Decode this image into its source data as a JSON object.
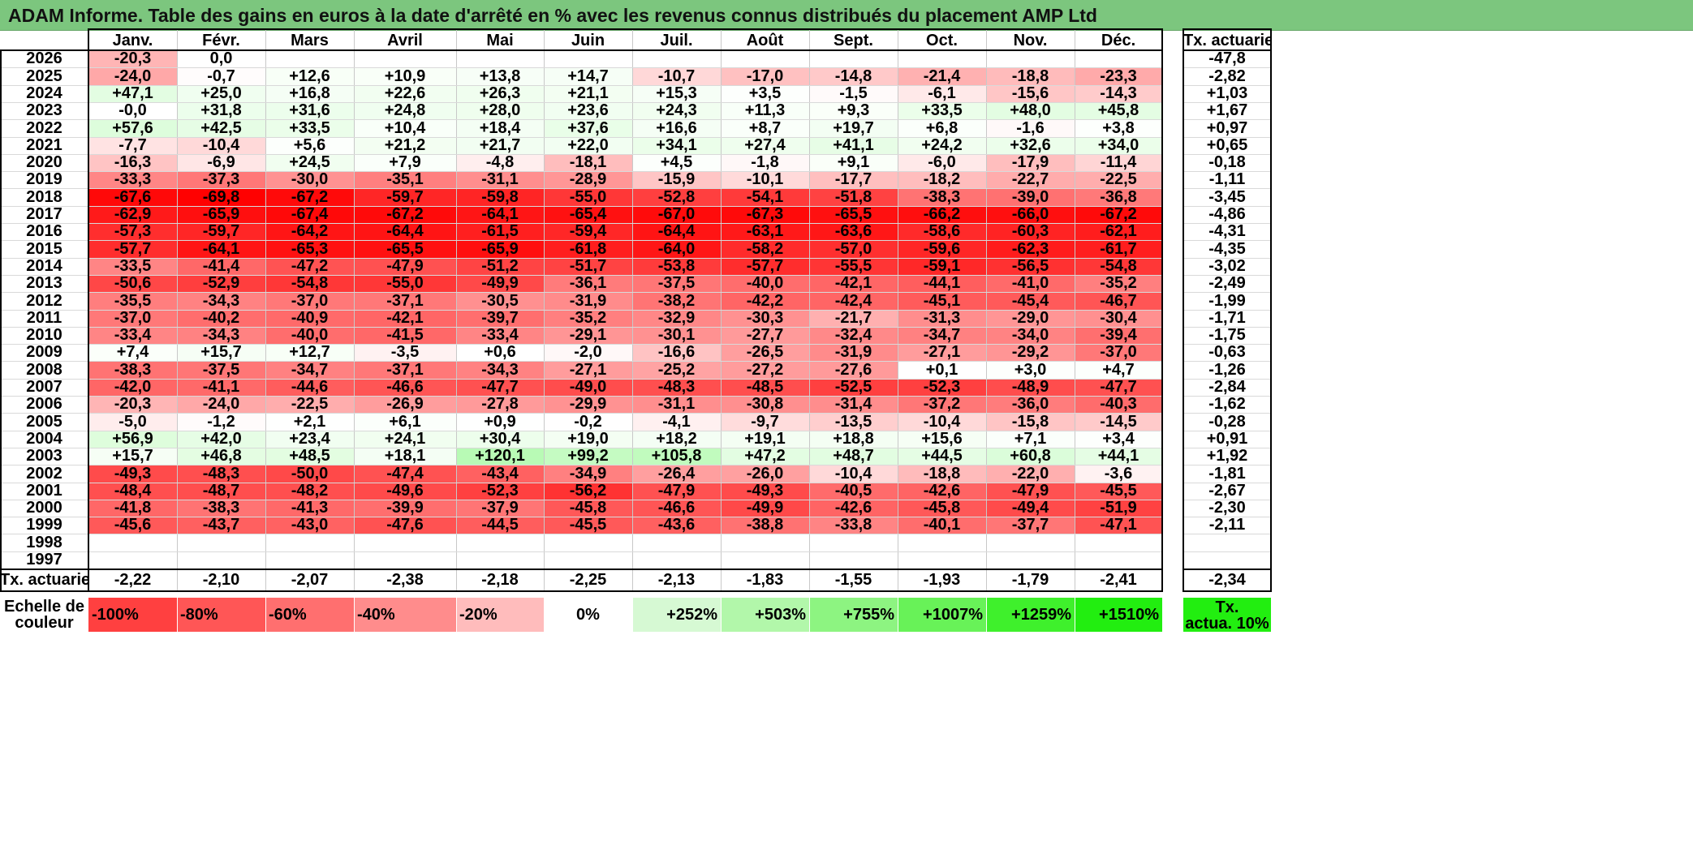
{
  "title": "ADAM Informe. Table des gains en euros à la date d'arrêté en % avec les revenus connus distribués du placement AMP Ltd",
  "months": [
    "Janv.",
    "Févr.",
    "Mars",
    "Avril",
    "Mai",
    "Juin",
    "Juil.",
    "Août",
    "Sept.",
    "Oct.",
    "Nov.",
    "Déc."
  ],
  "rate_header": "Tx. actuariel",
  "rows": [
    {
      "year": "2026",
      "values": [
        "-20,3",
        "0,0",
        "",
        "",
        "",
        "",
        "",
        "",
        "",
        "",
        "",
        ""
      ],
      "rate": "-47,8"
    },
    {
      "year": "2025",
      "values": [
        "-24,0",
        "-0,7",
        "+12,6",
        "+10,9",
        "+13,8",
        "+14,7",
        "-10,7",
        "-17,0",
        "-14,8",
        "-21,4",
        "-18,8",
        "-23,3"
      ],
      "rate": "-2,82"
    },
    {
      "year": "2024",
      "values": [
        "+47,1",
        "+25,0",
        "+16,8",
        "+22,6",
        "+26,3",
        "+21,1",
        "+15,3",
        "+3,5",
        "-1,5",
        "-6,1",
        "-15,6",
        "-14,3"
      ],
      "rate": "+1,03"
    },
    {
      "year": "2023",
      "values": [
        "-0,0",
        "+31,8",
        "+31,6",
        "+24,8",
        "+28,0",
        "+23,6",
        "+24,3",
        "+11,3",
        "+9,3",
        "+33,5",
        "+48,0",
        "+45,8"
      ],
      "rate": "+1,67"
    },
    {
      "year": "2022",
      "values": [
        "+57,6",
        "+42,5",
        "+33,5",
        "+10,4",
        "+18,4",
        "+37,6",
        "+16,6",
        "+8,7",
        "+19,7",
        "+6,8",
        "-1,6",
        "+3,8"
      ],
      "rate": "+0,97"
    },
    {
      "year": "2021",
      "values": [
        "-7,7",
        "-10,4",
        "+5,6",
        "+21,2",
        "+21,7",
        "+22,0",
        "+34,1",
        "+27,4",
        "+41,1",
        "+24,2",
        "+32,6",
        "+34,0"
      ],
      "rate": "+0,65"
    },
    {
      "year": "2020",
      "values": [
        "-16,3",
        "-6,9",
        "+24,5",
        "+7,9",
        "-4,8",
        "-18,1",
        "+4,5",
        "-1,8",
        "+9,1",
        "-6,0",
        "-17,9",
        "-11,4"
      ],
      "rate": "-0,18"
    },
    {
      "year": "2019",
      "values": [
        "-33,3",
        "-37,3",
        "-30,0",
        "-35,1",
        "-31,1",
        "-28,9",
        "-15,9",
        "-10,1",
        "-17,7",
        "-18,2",
        "-22,7",
        "-22,5"
      ],
      "rate": "-1,11"
    },
    {
      "year": "2018",
      "values": [
        "-67,6",
        "-69,8",
        "-67,2",
        "-59,7",
        "-59,8",
        "-55,0",
        "-52,8",
        "-54,1",
        "-51,8",
        "-38,3",
        "-39,0",
        "-36,8"
      ],
      "rate": "-3,45"
    },
    {
      "year": "2017",
      "values": [
        "-62,9",
        "-65,9",
        "-67,4",
        "-67,2",
        "-64,1",
        "-65,4",
        "-67,0",
        "-67,3",
        "-65,5",
        "-66,2",
        "-66,0",
        "-67,2"
      ],
      "rate": "-4,86"
    },
    {
      "year": "2016",
      "values": [
        "-57,3",
        "-59,7",
        "-64,2",
        "-64,4",
        "-61,5",
        "-59,4",
        "-64,4",
        "-63,1",
        "-63,6",
        "-58,6",
        "-60,3",
        "-62,1"
      ],
      "rate": "-4,31"
    },
    {
      "year": "2015",
      "values": [
        "-57,7",
        "-64,1",
        "-65,3",
        "-65,5",
        "-65,9",
        "-61,8",
        "-64,0",
        "-58,2",
        "-57,0",
        "-59,6",
        "-62,3",
        "-61,7"
      ],
      "rate": "-4,35"
    },
    {
      "year": "2014",
      "values": [
        "-33,5",
        "-41,4",
        "-47,2",
        "-47,9",
        "-51,2",
        "-51,7",
        "-53,8",
        "-57,7",
        "-55,5",
        "-59,1",
        "-56,5",
        "-54,8"
      ],
      "rate": "-3,02"
    },
    {
      "year": "2013",
      "values": [
        "-50,6",
        "-52,9",
        "-54,8",
        "-55,0",
        "-49,9",
        "-36,1",
        "-37,5",
        "-40,0",
        "-42,1",
        "-44,1",
        "-41,0",
        "-35,2"
      ],
      "rate": "-2,49"
    },
    {
      "year": "2012",
      "values": [
        "-35,5",
        "-34,3",
        "-37,0",
        "-37,1",
        "-30,5",
        "-31,9",
        "-38,2",
        "-42,2",
        "-42,4",
        "-45,1",
        "-45,4",
        "-46,7"
      ],
      "rate": "-1,99"
    },
    {
      "year": "2011",
      "values": [
        "-37,0",
        "-40,2",
        "-40,9",
        "-42,1",
        "-39,7",
        "-35,2",
        "-32,9",
        "-30,3",
        "-21,7",
        "-31,3",
        "-29,0",
        "-30,4"
      ],
      "rate": "-1,71"
    },
    {
      "year": "2010",
      "values": [
        "-33,4",
        "-34,3",
        "-40,0",
        "-41,5",
        "-33,4",
        "-29,1",
        "-30,1",
        "-27,7",
        "-32,4",
        "-34,7",
        "-34,0",
        "-39,4"
      ],
      "rate": "-1,75"
    },
    {
      "year": "2009",
      "values": [
        "+7,4",
        "+15,7",
        "+12,7",
        "-3,5",
        "+0,6",
        "-2,0",
        "-16,6",
        "-26,5",
        "-31,9",
        "-27,1",
        "-29,2",
        "-37,0"
      ],
      "rate": "-0,63"
    },
    {
      "year": "2008",
      "values": [
        "-38,3",
        "-37,5",
        "-34,7",
        "-37,1",
        "-34,3",
        "-27,1",
        "-25,2",
        "-27,2",
        "-27,6",
        "+0,1",
        "+3,0",
        "+4,7"
      ],
      "rate": "-1,26"
    },
    {
      "year": "2007",
      "values": [
        "-42,0",
        "-41,1",
        "-44,6",
        "-46,6",
        "-47,7",
        "-49,0",
        "-48,3",
        "-48,5",
        "-52,5",
        "-52,3",
        "-48,9",
        "-47,7"
      ],
      "rate": "-2,84"
    },
    {
      "year": "2006",
      "values": [
        "-20,3",
        "-24,0",
        "-22,5",
        "-26,9",
        "-27,8",
        "-29,9",
        "-31,1",
        "-30,8",
        "-31,4",
        "-37,2",
        "-36,0",
        "-40,3"
      ],
      "rate": "-1,62"
    },
    {
      "year": "2005",
      "values": [
        "-5,0",
        "-1,2",
        "+2,1",
        "+6,1",
        "+0,9",
        "-0,2",
        "-4,1",
        "-9,7",
        "-13,5",
        "-10,4",
        "-15,8",
        "-14,5"
      ],
      "rate": "-0,28"
    },
    {
      "year": "2004",
      "values": [
        "+56,9",
        "+42,0",
        "+23,4",
        "+24,1",
        "+30,4",
        "+19,0",
        "+18,2",
        "+19,1",
        "+18,8",
        "+15,6",
        "+7,1",
        "+3,4"
      ],
      "rate": "+0,91"
    },
    {
      "year": "2003",
      "values": [
        "+15,7",
        "+46,8",
        "+48,5",
        "+18,1",
        "+120,1",
        "+99,2",
        "+105,8",
        "+47,2",
        "+48,7",
        "+44,5",
        "+60,8",
        "+44,1"
      ],
      "rate": "+1,92"
    },
    {
      "year": "2002",
      "values": [
        "-49,3",
        "-48,3",
        "-50,0",
        "-47,4",
        "-43,4",
        "-34,9",
        "-26,4",
        "-26,0",
        "-10,4",
        "-18,8",
        "-22,0",
        "-3,6"
      ],
      "rate": "-1,81"
    },
    {
      "year": "2001",
      "values": [
        "-48,4",
        "-48,7",
        "-48,2",
        "-49,6",
        "-52,3",
        "-56,2",
        "-47,9",
        "-49,3",
        "-40,5",
        "-42,6",
        "-47,9",
        "-45,5"
      ],
      "rate": "-2,67"
    },
    {
      "year": "2000",
      "values": [
        "-41,8",
        "-38,3",
        "-41,3",
        "-39,9",
        "-37,9",
        "-45,8",
        "-46,6",
        "-49,9",
        "-42,6",
        "-45,8",
        "-49,4",
        "-51,9"
      ],
      "rate": "-2,30"
    },
    {
      "year": "1999",
      "values": [
        "-45,6",
        "-43,7",
        "-43,0",
        "-47,6",
        "-44,5",
        "-45,5",
        "-43,6",
        "-38,8",
        "-33,8",
        "-40,1",
        "-37,7",
        "-47,1"
      ],
      "rate": "-2,11"
    },
    {
      "year": "1998",
      "values": [
        "",
        "",
        "",
        "",
        "",
        "",
        "",
        "",
        "",
        "",
        "",
        ""
      ],
      "rate": ""
    },
    {
      "year": "1997",
      "values": [
        "",
        "",
        "",
        "",
        "",
        "",
        "",
        "",
        "",
        "",
        "",
        ""
      ],
      "rate": ""
    }
  ],
  "footer": {
    "label": "Tx. actuariel",
    "values": [
      "-2,22",
      "-2,10",
      "-2,07",
      "-2,38",
      "-2,18",
      "-2,25",
      "-2,13",
      "-1,83",
      "-1,55",
      "-1,93",
      "-1,79",
      "-2,41"
    ],
    "rate": "-2,34"
  },
  "legend": {
    "title_line1": "Echelle de",
    "title_line2": "couleur",
    "items": [
      {
        "label": "-100%",
        "color": "#ff4040",
        "align": "left"
      },
      {
        "label": "-80%",
        "color": "#ff5656",
        "align": "left"
      },
      {
        "label": "-60%",
        "color": "#ff6f6f",
        "align": "left"
      },
      {
        "label": "-40%",
        "color": "#ff8c8c",
        "align": "left"
      },
      {
        "label": "-20%",
        "color": "#ffbcbc",
        "align": "left"
      },
      {
        "label": "0%",
        "color": "#ffffff",
        "align": "center"
      },
      {
        "label": "+252%",
        "color": "#d6f9d3",
        "align": "right"
      },
      {
        "label": "+503%",
        "color": "#b2f7aa",
        "align": "right"
      },
      {
        "label": "+755%",
        "color": "#8df481",
        "align": "right"
      },
      {
        "label": "+1007%",
        "color": "#68f258",
        "align": "right"
      },
      {
        "label": "+1259%",
        "color": "#3ff02c",
        "align": "right"
      },
      {
        "label": "+1510%",
        "color": "#22ee10",
        "align": "right"
      }
    ],
    "rate_line1": "Tx.",
    "rate_line2": "actua. 10%",
    "rate_color": "#22ee10"
  }
}
